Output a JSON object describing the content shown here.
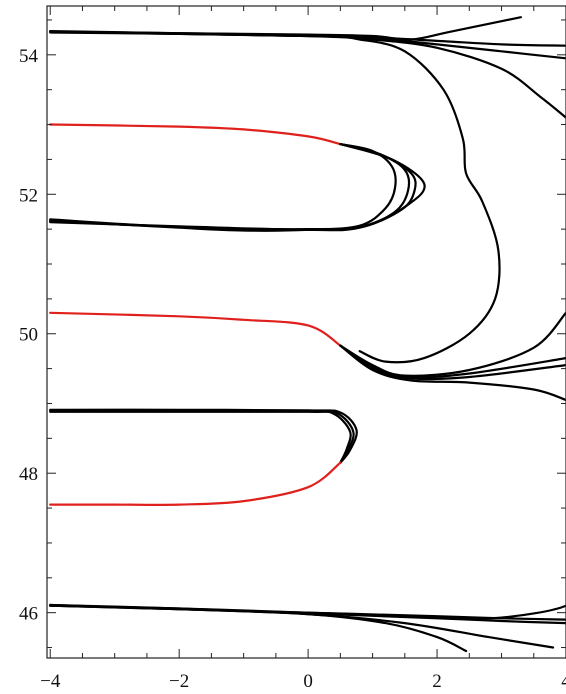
{
  "chart_data": {
    "type": "line",
    "title": "",
    "xlabel": "",
    "ylabel": "",
    "xlim": [
      -4.05,
      4
    ],
    "ylim": [
      45.35,
      54.7
    ],
    "grid": false,
    "legend": "none",
    "x_ticks": [
      -4,
      -2,
      0,
      2,
      4
    ],
    "y_ticks": [
      46,
      48,
      50,
      52,
      54
    ],
    "x_tick_labels": [
      "−4",
      "−2",
      "0",
      "2",
      "4"
    ],
    "y_tick_labels": [
      "46",
      "48",
      "50",
      "52",
      "54"
    ],
    "colors": {
      "black": "#000000",
      "red": "#e0201c"
    },
    "series": [
      {
        "color": "black",
        "width": 2.2,
        "points": [
          [
            -4,
            54.33
          ],
          [
            -2,
            54.31
          ],
          [
            0,
            54.29
          ],
          [
            1,
            54.27
          ],
          [
            1.6,
            54.22
          ],
          [
            2.2,
            54.33
          ],
          [
            3.3,
            54.54
          ]
        ]
      },
      {
        "color": "black",
        "width": 2.2,
        "points": [
          [
            -4,
            54.33
          ],
          [
            -2,
            54.3
          ],
          [
            0,
            54.27
          ],
          [
            1,
            54.25
          ],
          [
            2,
            54.2
          ],
          [
            3,
            54.15
          ],
          [
            4,
            54.13
          ]
        ]
      },
      {
        "color": "black",
        "width": 2.2,
        "points": [
          [
            -4,
            54.34
          ],
          [
            -2,
            54.31
          ],
          [
            0,
            54.28
          ],
          [
            1,
            54.24
          ],
          [
            2,
            54.15
          ],
          [
            3,
            54.05
          ],
          [
            4,
            53.95
          ]
        ]
      },
      {
        "color": "black",
        "width": 2.2,
        "points": [
          [
            -4,
            54.32
          ],
          [
            -2,
            54.3
          ],
          [
            0,
            54.27
          ],
          [
            1,
            54.22
          ],
          [
            2,
            54.1
          ],
          [
            3,
            53.8
          ],
          [
            3.6,
            53.4
          ],
          [
            4,
            53.1
          ]
        ]
      },
      {
        "color": "black",
        "width": 2.2,
        "points": [
          [
            -4,
            54.33
          ],
          [
            0,
            54.27
          ],
          [
            0.8,
            54.22
          ],
          [
            1.5,
            54.05
          ],
          [
            2.1,
            53.5
          ],
          [
            2.4,
            52.8
          ],
          [
            2.45,
            52.3
          ],
          [
            2.7,
            51.9
          ],
          [
            2.95,
            51.2
          ],
          [
            2.9,
            50.5
          ],
          [
            2.5,
            50.0
          ],
          [
            1.8,
            49.65
          ],
          [
            1.2,
            49.6
          ],
          [
            0.8,
            49.75
          ]
        ]
      },
      {
        "color": "red",
        "width": 2.2,
        "points": [
          [
            -4,
            53.0
          ],
          [
            -2,
            52.97
          ],
          [
            -1,
            52.93
          ],
          [
            0,
            52.83
          ],
          [
            0.5,
            52.72
          ]
        ]
      },
      {
        "color": "black",
        "width": 2.2,
        "points": [
          [
            0.5,
            52.72
          ],
          [
            1.0,
            52.62
          ],
          [
            1.3,
            52.4
          ],
          [
            1.35,
            52.1
          ],
          [
            1.2,
            51.8
          ],
          [
            0.8,
            51.55
          ],
          [
            0,
            51.49
          ],
          [
            -1,
            51.48
          ],
          [
            -2,
            51.52
          ],
          [
            -4,
            51.62
          ]
        ]
      },
      {
        "color": "black",
        "width": 2.2,
        "points": [
          [
            0.5,
            52.72
          ],
          [
            1.1,
            52.58
          ],
          [
            1.5,
            52.35
          ],
          [
            1.55,
            52.05
          ],
          [
            1.35,
            51.75
          ],
          [
            0.8,
            51.53
          ],
          [
            0,
            51.49
          ],
          [
            -2,
            51.53
          ],
          [
            -4,
            51.64
          ]
        ]
      },
      {
        "color": "black",
        "width": 2.2,
        "points": [
          [
            0.5,
            52.72
          ],
          [
            1.15,
            52.56
          ],
          [
            1.6,
            52.3
          ],
          [
            1.65,
            52.05
          ],
          [
            1.45,
            51.78
          ],
          [
            0.8,
            51.52
          ],
          [
            0,
            51.49
          ],
          [
            -2,
            51.54
          ],
          [
            -4,
            51.6
          ]
        ]
      },
      {
        "color": "black",
        "width": 2.2,
        "points": [
          [
            0.5,
            52.72
          ],
          [
            1.3,
            52.5
          ],
          [
            1.8,
            52.15
          ],
          [
            1.55,
            51.85
          ],
          [
            0.9,
            51.55
          ],
          [
            0,
            51.5
          ],
          [
            -2,
            51.53
          ],
          [
            -4,
            51.62
          ]
        ]
      },
      {
        "color": "red",
        "width": 2.2,
        "points": [
          [
            -4,
            50.3
          ],
          [
            -2,
            50.25
          ],
          [
            -1,
            50.2
          ],
          [
            0,
            50.12
          ],
          [
            0.5,
            49.83
          ]
        ]
      },
      {
        "color": "black",
        "width": 2.2,
        "points": [
          [
            0.5,
            49.83
          ],
          [
            1.0,
            49.55
          ],
          [
            1.5,
            49.4
          ],
          [
            2.5,
            49.48
          ],
          [
            3.5,
            49.8
          ],
          [
            4,
            50.3
          ]
        ]
      },
      {
        "color": "black",
        "width": 2.2,
        "points": [
          [
            0.5,
            49.83
          ],
          [
            1.0,
            49.52
          ],
          [
            1.6,
            49.38
          ],
          [
            2.5,
            49.43
          ],
          [
            4,
            49.65
          ]
        ]
      },
      {
        "color": "black",
        "width": 2.2,
        "points": [
          [
            0.5,
            49.83
          ],
          [
            1.0,
            49.5
          ],
          [
            1.6,
            49.36
          ],
          [
            2.5,
            49.38
          ],
          [
            4,
            49.55
          ]
        ]
      },
      {
        "color": "black",
        "width": 2.2,
        "points": [
          [
            0.5,
            49.83
          ],
          [
            1.0,
            49.48
          ],
          [
            1.6,
            49.33
          ],
          [
            2.5,
            49.3
          ],
          [
            3.5,
            49.2
          ],
          [
            4,
            49.05
          ]
        ]
      },
      {
        "color": "black",
        "width": 2.2,
        "points": [
          [
            -4,
            48.88
          ],
          [
            -2,
            48.88
          ],
          [
            0,
            48.88
          ],
          [
            0.4,
            48.85
          ],
          [
            0.65,
            48.6
          ],
          [
            0.6,
            48.35
          ],
          [
            0.5,
            48.15
          ]
        ]
      },
      {
        "color": "black",
        "width": 2.2,
        "points": [
          [
            -4,
            48.9
          ],
          [
            -2,
            48.9
          ],
          [
            0,
            48.89
          ],
          [
            0.45,
            48.86
          ],
          [
            0.7,
            48.6
          ],
          [
            0.62,
            48.33
          ],
          [
            0.5,
            48.15
          ]
        ]
      },
      {
        "color": "black",
        "width": 2.2,
        "points": [
          [
            -4,
            48.91
          ],
          [
            -2,
            48.91
          ],
          [
            0,
            48.9
          ],
          [
            0.5,
            48.87
          ],
          [
            0.75,
            48.62
          ],
          [
            0.65,
            48.33
          ],
          [
            0.5,
            48.15
          ]
        ]
      },
      {
        "color": "red",
        "width": 2.2,
        "points": [
          [
            0.5,
            48.15
          ],
          [
            0,
            47.8
          ],
          [
            -1,
            47.6
          ],
          [
            -2,
            47.55
          ],
          [
            -3,
            47.55
          ],
          [
            -4,
            47.55
          ]
        ]
      },
      {
        "color": "black",
        "width": 2.2,
        "points": [
          [
            -4,
            46.1
          ],
          [
            -2,
            46.06
          ],
          [
            0,
            46.0
          ],
          [
            1,
            45.97
          ],
          [
            2,
            45.93
          ],
          [
            3,
            45.93
          ],
          [
            4,
            46.1
          ],
          [
            4.2,
            46.4
          ]
        ]
      },
      {
        "color": "black",
        "width": 2.2,
        "points": [
          [
            -4,
            46.1
          ],
          [
            -2,
            46.05
          ],
          [
            0,
            46.0
          ],
          [
            2,
            45.95
          ],
          [
            3,
            45.92
          ],
          [
            4,
            45.9
          ]
        ]
      },
      {
        "color": "black",
        "width": 2.2,
        "points": [
          [
            -4,
            46.1
          ],
          [
            -2,
            46.05
          ],
          [
            0,
            45.99
          ],
          [
            2,
            45.92
          ],
          [
            3,
            45.88
          ],
          [
            4,
            45.85
          ]
        ]
      },
      {
        "color": "black",
        "width": 2.2,
        "points": [
          [
            -4,
            46.11
          ],
          [
            -2,
            46.06
          ],
          [
            0,
            45.98
          ],
          [
            1.5,
            45.85
          ],
          [
            2.8,
            45.65
          ],
          [
            3.8,
            45.5
          ]
        ]
      },
      {
        "color": "black",
        "width": 2.2,
        "points": [
          [
            -4,
            46.11
          ],
          [
            -2,
            46.05
          ],
          [
            0,
            45.98
          ],
          [
            1.2,
            45.85
          ],
          [
            2,
            45.65
          ],
          [
            2.45,
            45.45
          ]
        ]
      }
    ]
  }
}
